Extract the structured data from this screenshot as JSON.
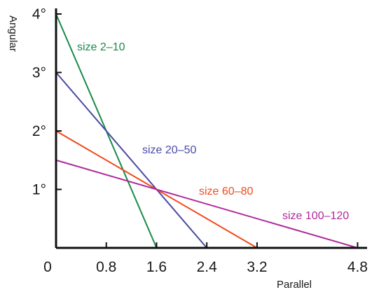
{
  "chart_data": {
    "type": "line",
    "xlabel": "Parallel",
    "ylabel": "Angular",
    "xlim": [
      0,
      4.8
    ],
    "ylim": [
      0,
      4
    ],
    "xticks": [
      {
        "value": 0,
        "label": "0"
      },
      {
        "value": 0.8,
        "label": "0.8"
      },
      {
        "value": 1.6,
        "label": "1.6"
      },
      {
        "value": 2.4,
        "label": "2.4"
      },
      {
        "value": 3.2,
        "label": "3.2"
      },
      {
        "value": 4.8,
        "label": "4.8"
      }
    ],
    "yticks": [
      {
        "value": 1,
        "label": "1°"
      },
      {
        "value": 2,
        "label": "2°"
      },
      {
        "value": 3,
        "label": "3°"
      },
      {
        "value": 4,
        "label": "4°"
      }
    ],
    "grid": false,
    "series": [
      {
        "name": "size 2–10",
        "color": "#1a8a4a",
        "points": [
          [
            0,
            4
          ],
          [
            1.6,
            0
          ]
        ]
      },
      {
        "name": "size 20–50",
        "color": "#4a4aa8",
        "points": [
          [
            0,
            3
          ],
          [
            2.4,
            0
          ]
        ]
      },
      {
        "name": "size 60–80",
        "color": "#f04a1a",
        "points": [
          [
            0,
            2
          ],
          [
            3.2,
            0
          ]
        ]
      },
      {
        "name": "size 100–120",
        "color": "#b02a9a",
        "points": [
          [
            0,
            1.5
          ],
          [
            4.8,
            0
          ]
        ]
      }
    ]
  }
}
